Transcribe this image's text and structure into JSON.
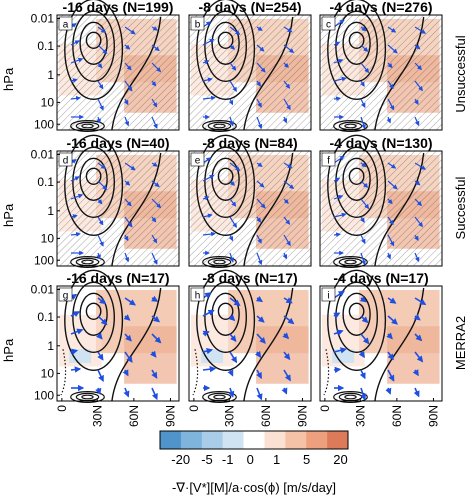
{
  "figure": {
    "ylabel": "hPa",
    "yticks": [
      "0.01",
      "0.1",
      "1",
      "10",
      "100"
    ],
    "xticks": [
      "0",
      "30N",
      "60N",
      "90N"
    ],
    "row_labels": [
      "Unsuccessful",
      "Successful",
      "MERRA2"
    ]
  },
  "colorbar": {
    "label": "-∇·[V*][M]/a·cos(ϕ) [m/s/day]",
    "ticks": [
      "-20",
      "-5",
      "-1",
      "0",
      "1",
      "5",
      "20"
    ],
    "colors": [
      "#4f95cb",
      "#7fb4dc",
      "#a9cde9",
      "#cfe3f3",
      "#ffffff",
      "#fbe1d4",
      "#f6c2a7",
      "#eea07e",
      "#dd7a5a"
    ]
  },
  "chart_data": [
    {
      "type": "heatmap",
      "panel": "a",
      "title": "-16 days (N=199)",
      "row": "Unsuccessful",
      "lead_days": -16,
      "N": 199,
      "xlabel": "",
      "ylabel": "hPa",
      "xlim": [
        0,
        90
      ],
      "ylim": [
        100,
        0.01
      ],
      "yscale": "log"
    },
    {
      "type": "heatmap",
      "panel": "b",
      "title": "-8 days (N=254)",
      "row": "Unsuccessful",
      "lead_days": -8,
      "N": 254,
      "xlabel": "",
      "ylabel": "",
      "xlim": [
        0,
        90
      ],
      "ylim": [
        100,
        0.01
      ],
      "yscale": "log"
    },
    {
      "type": "heatmap",
      "panel": "c",
      "title": "-4 days (N=276)",
      "row": "Unsuccessful",
      "lead_days": -4,
      "N": 276,
      "xlabel": "",
      "ylabel": "",
      "xlim": [
        0,
        90
      ],
      "ylim": [
        100,
        0.01
      ],
      "yscale": "log"
    },
    {
      "type": "heatmap",
      "panel": "d",
      "title": "-16 days (N=40)",
      "row": "Successful",
      "lead_days": -16,
      "N": 40,
      "xlabel": "",
      "ylabel": "hPa",
      "xlim": [
        0,
        90
      ],
      "ylim": [
        100,
        0.01
      ],
      "yscale": "log"
    },
    {
      "type": "heatmap",
      "panel": "e",
      "title": "-8 days (N=84)",
      "row": "Successful",
      "lead_days": -8,
      "N": 84,
      "xlabel": "",
      "ylabel": "",
      "xlim": [
        0,
        90
      ],
      "ylim": [
        100,
        0.01
      ],
      "yscale": "log"
    },
    {
      "type": "heatmap",
      "panel": "f",
      "title": "-4 days (N=130)",
      "row": "Successful",
      "lead_days": -4,
      "N": 130,
      "xlabel": "",
      "ylabel": "",
      "xlim": [
        0,
        90
      ],
      "ylim": [
        100,
        0.01
      ],
      "yscale": "log"
    },
    {
      "type": "heatmap",
      "panel": "g",
      "title": "-16 days (N=17)",
      "row": "MERRA2",
      "lead_days": -16,
      "N": 17,
      "xlabel": "",
      "ylabel": "hPa",
      "xlim": [
        0,
        90
      ],
      "ylim": [
        100,
        0.01
      ],
      "yscale": "log"
    },
    {
      "type": "heatmap",
      "panel": "h",
      "title": "-8 days (N=17)",
      "row": "MERRA2",
      "lead_days": -8,
      "N": 17,
      "xlabel": "",
      "ylabel": "",
      "xlim": [
        0,
        90
      ],
      "ylim": [
        100,
        0.01
      ],
      "yscale": "log"
    },
    {
      "type": "heatmap",
      "panel": "i",
      "title": "-4 days (N=17)",
      "row": "MERRA2",
      "lead_days": -4,
      "N": 17,
      "xlabel": "",
      "ylabel": "",
      "xlim": [
        0,
        90
      ],
      "ylim": [
        100,
        0.01
      ],
      "yscale": "log"
    }
  ]
}
